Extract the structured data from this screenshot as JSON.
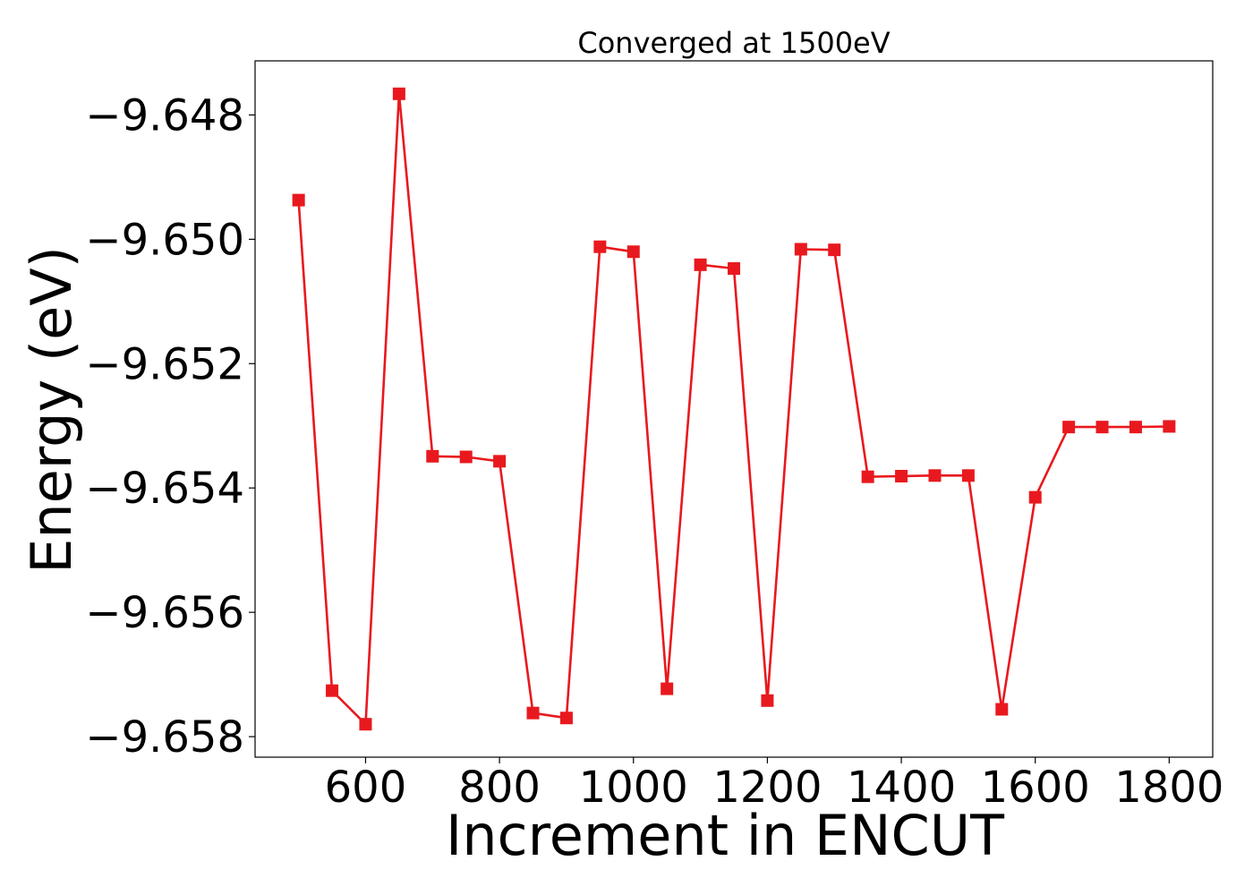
{
  "chart_data": {
    "type": "line",
    "title": "Converged at 1500eV",
    "xlabel": "Increment in ENCUT",
    "ylabel": "Energy (eV)",
    "xlim": [
      435,
      1865
    ],
    "ylim": [
      -9.65833,
      -9.64713
    ],
    "xticks": [
      600,
      800,
      1000,
      1200,
      1400,
      1600,
      1800
    ],
    "xtick_labels": [
      "600",
      "800",
      "1000",
      "1200",
      "1400",
      "1600",
      "1800"
    ],
    "yticks": [
      -9.648,
      -9.65,
      -9.652,
      -9.654,
      -9.656,
      -9.658
    ],
    "ytick_labels": [
      "−9.648",
      "−9.650",
      "−9.652",
      "−9.654",
      "−9.656",
      "−9.658"
    ],
    "grid": false,
    "legend": "none",
    "series": [
      {
        "color": "#e8191e",
        "marker": "square",
        "x": [
          500,
          550,
          600,
          650,
          700,
          750,
          800,
          850,
          900,
          950,
          1000,
          1050,
          1100,
          1150,
          1200,
          1250,
          1300,
          1350,
          1400,
          1450,
          1500,
          1550,
          1600,
          1650,
          1700,
          1750,
          1800
        ],
        "y": [
          -9.64937,
          -9.65726,
          -9.6578,
          -9.64766,
          -9.65349,
          -9.6535,
          -9.65357,
          -9.65762,
          -9.6577,
          -9.65012,
          -9.6502,
          -9.65723,
          -9.65041,
          -9.65047,
          -9.65742,
          -9.65016,
          -9.65017,
          -9.65382,
          -9.65381,
          -9.6538,
          -9.6538,
          -9.65756,
          -9.65415,
          -9.65302,
          -9.65302,
          -9.65302,
          -9.65301
        ]
      }
    ]
  }
}
